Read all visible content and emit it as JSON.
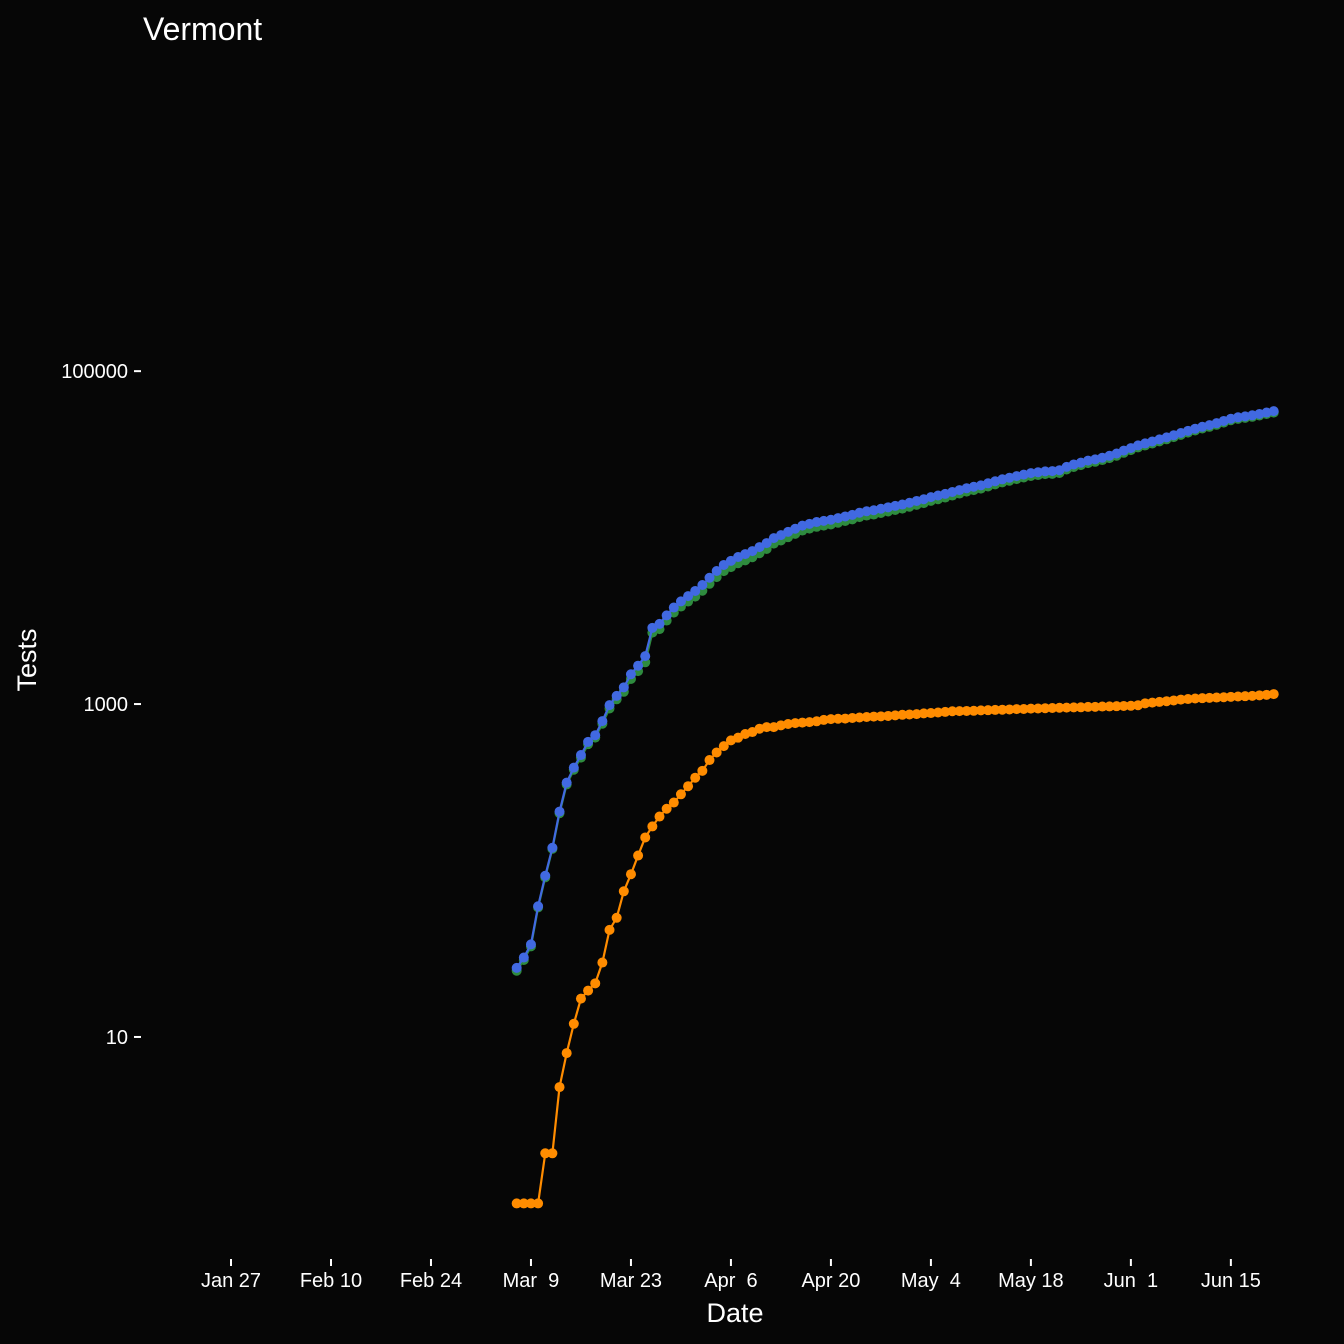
{
  "chart_data": {
    "type": "line",
    "title": "Vermont",
    "x_label": "Date",
    "y_label": "Tests",
    "x": [
      "Mar 7",
      "Mar 8",
      "Mar 9",
      "Mar 10",
      "Mar 11",
      "Mar 12",
      "Mar 13",
      "Mar 14",
      "Mar 15",
      "Mar 16",
      "Mar 17",
      "Mar 18",
      "Mar 19",
      "Mar 20",
      "Mar 21",
      "Mar 22",
      "Mar 23",
      "Mar 24",
      "Mar 25",
      "Mar 26",
      "Mar 27",
      "Mar 28",
      "Mar 29",
      "Mar 30",
      "Mar 31",
      "Apr 1",
      "Apr 2",
      "Apr 3",
      "Apr 4",
      "Apr 5",
      "Apr 6",
      "Apr 7",
      "Apr 8",
      "Apr 9",
      "Apr 10",
      "Apr 11",
      "Apr 12",
      "Apr 13",
      "Apr 14",
      "Apr 15",
      "Apr 16",
      "Apr 17",
      "Apr 18",
      "Apr 19",
      "Apr 20",
      "Apr 21",
      "Apr 22",
      "Apr 23",
      "Apr 24",
      "Apr 25",
      "Apr 26",
      "Apr 27",
      "Apr 28",
      "Apr 29",
      "Apr 30",
      "May 1",
      "May 2",
      "May 3",
      "May 4",
      "May 5",
      "May 6",
      "May 7",
      "May 8",
      "May 9",
      "May 10",
      "May 11",
      "May 12",
      "May 13",
      "May 14",
      "May 15",
      "May 16",
      "May 17",
      "May 18",
      "May 19",
      "May 20",
      "May 21",
      "May 22",
      "May 23",
      "May 24",
      "May 25",
      "May 26",
      "May 27",
      "May 28",
      "May 29",
      "May 30",
      "May 31",
      "Jun 1",
      "Jun 2",
      "Jun 3",
      "Jun 4",
      "Jun 5",
      "Jun 6",
      "Jun 7",
      "Jun 8",
      "Jun 9",
      "Jun 10",
      "Jun 11",
      "Jun 12",
      "Jun 13",
      "Jun 14",
      "Jun 15",
      "Jun 16",
      "Jun 17",
      "Jun 18",
      "Jun 19",
      "Jun 20",
      "Jun 21"
    ],
    "xlim": [
      "Jan 15",
      "Jun 23"
    ],
    "xticks": [
      "Jan 27",
      "Feb 10",
      "Feb 24",
      "Mar  9",
      "Mar 23",
      "Apr  6",
      "Apr 20",
      "May  4",
      "May 18",
      "Jun  1",
      "Jun 15"
    ],
    "ylim": [
      0.47,
      7400000
    ],
    "yticks": [
      10,
      1000,
      100000
    ],
    "log_y": true,
    "markers": true,
    "series": [
      {
        "color": "#2e8b3e",
        "values": [
          25,
          29,
          35,
          60,
          91,
          135,
          221,
          329,
          403,
          477,
          574,
          629,
          762,
          941,
          1068,
          1185,
          1415,
          1577,
          1782,
          2686,
          2819,
          3175,
          3544,
          3853,
          4129,
          4419,
          4793,
          5279,
          5788,
          6291,
          6645,
          7012,
          7299,
          7621,
          8059,
          8543,
          9203,
          9605,
          10061,
          10532,
          11026,
          11321,
          11612,
          11797,
          11988,
          12284,
          12582,
          12875,
          13270,
          13564,
          13759,
          14056,
          14352,
          14645,
          14938,
          15334,
          15730,
          16121,
          16617,
          17010,
          17403,
          17895,
          18393,
          18891,
          19289,
          19684,
          20281,
          20878,
          21475,
          21972,
          22468,
          22966,
          23461,
          23760,
          24056,
          24153,
          24450,
          25648,
          26545,
          27244,
          28039,
          28538,
          29234,
          30032,
          31029,
          32326,
          33524,
          34816,
          35790,
          36780,
          37870,
          38960,
          40149,
          41436,
          42728,
          44020,
          45215,
          46310,
          47606,
          49101,
          50695,
          51690,
          52385,
          53180,
          54172,
          55264,
          56352
        ]
      },
      {
        "color": "#ff8c00",
        "values": [
          1,
          1,
          1,
          1,
          2,
          2,
          5,
          8,
          12,
          17,
          19,
          21,
          28,
          44,
          52,
          75,
          95,
          123,
          158,
          184,
          211,
          235,
          256,
          287,
          321,
          361,
          397,
          461,
          512,
          559,
          605,
          628,
          661,
          679,
          711,
          727,
          727,
          745,
          759,
          768,
          774,
          779,
          788,
          803,
          812,
          816,
          818,
          825,
          830,
          836,
          841,
          844,
          848,
          855,
          862,
          866,
          870,
          879,
          883,
          890,
          897,
          905,
          907,
          909,
          911,
          916,
          919,
          922,
          925,
          928,
          932,
          934,
          939,
          940,
          944,
          947,
          950,
          952,
          955,
          956,
          961,
          962,
          966,
          968,
          971,
          974,
          976,
          984,
          1010,
          1020,
          1030,
          1040,
          1051,
          1064,
          1072,
          1080,
          1085,
          1090,
          1094,
          1099,
          1105,
          1110,
          1115,
          1120,
          1128,
          1136,
          1148
        ]
      },
      {
        "color": "#4169e1",
        "values": [
          26,
          30,
          36,
          61,
          93,
          137,
          226,
          337,
          415,
          494,
          593,
          650,
          790,
          985,
          1120,
          1260,
          1510,
          1700,
          1940,
          2870,
          3030,
          3410,
          3800,
          4140,
          4450,
          4780,
          5190,
          5740,
          6300,
          6850,
          7250,
          7640,
          7960,
          8300,
          8770,
          9270,
          9930,
          10350,
          10820,
          11300,
          11800,
          12100,
          12400,
          12600,
          12800,
          13100,
          13400,
          13700,
          14100,
          14400,
          14600,
          14900,
          15200,
          15500,
          15800,
          16200,
          16600,
          17000,
          17500,
          17900,
          18300,
          18800,
          19300,
          19800,
          20200,
          20600,
          21200,
          21800,
          22400,
          22900,
          23400,
          23900,
          24400,
          24700,
          25000,
          25100,
          25400,
          26600,
          27500,
          28200,
          29000,
          29500,
          30200,
          31000,
          32000,
          33300,
          34500,
          35800,
          36800,
          37800,
          38900,
          40000,
          41200,
          42500,
          43800,
          45100,
          46300,
          47400,
          48700,
          50200,
          51800,
          52800,
          53500,
          54300,
          55300,
          56400,
          57500
        ]
      }
    ]
  }
}
